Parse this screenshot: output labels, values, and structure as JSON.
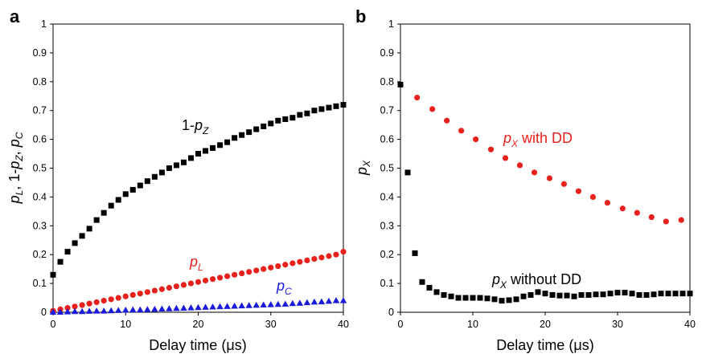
{
  "chart_data": [
    {
      "panel_label": "a",
      "type": "scatter",
      "xlabel": "Delay time (μs)",
      "ylabel": {
        "p1": "p",
        "s1": "L",
        "sep1": ", 1-",
        "p2": "p",
        "s2": "Z",
        "sep2": ", ",
        "p3": "p",
        "s3": "C"
      },
      "xlim": [
        0,
        40
      ],
      "ylim": [
        0,
        1
      ],
      "xticks": [
        "0",
        "10",
        "20",
        "30",
        "40"
      ],
      "yticks": [
        "0",
        "0.1",
        "0.2",
        "0.3",
        "0.4",
        "0.5",
        "0.6",
        "0.7",
        "0.8",
        "0.9",
        "1"
      ],
      "grid": false,
      "annotations": {
        "pz": {
          "pre": "1-",
          "p": "p",
          "sub": "Z"
        },
        "pl": {
          "p": "p",
          "sub": "L"
        },
        "pc": {
          "p": "p",
          "sub": "C"
        }
      },
      "series": [
        {
          "key": "pz",
          "marker": "square",
          "color": "#000000",
          "x": [
            0,
            1,
            2,
            3,
            4,
            5,
            6,
            7,
            8,
            9,
            10,
            11,
            12,
            13,
            14,
            15,
            16,
            17,
            18,
            19,
            20,
            21,
            22,
            23,
            24,
            25,
            26,
            27,
            28,
            29,
            30,
            31,
            32,
            33,
            34,
            35,
            36,
            37,
            38,
            39,
            40
          ],
          "y": [
            0.13,
            0.175,
            0.21,
            0.24,
            0.265,
            0.29,
            0.32,
            0.345,
            0.37,
            0.39,
            0.41,
            0.425,
            0.44,
            0.455,
            0.47,
            0.485,
            0.5,
            0.51,
            0.52,
            0.535,
            0.55,
            0.56,
            0.57,
            0.58,
            0.59,
            0.605,
            0.615,
            0.625,
            0.635,
            0.645,
            0.655,
            0.665,
            0.67,
            0.675,
            0.685,
            0.69,
            0.7,
            0.705,
            0.71,
            0.715,
            0.72
          ]
        },
        {
          "key": "pl",
          "marker": "circle",
          "color": "#e8211d",
          "x": [
            0,
            1,
            2,
            3,
            4,
            5,
            6,
            7,
            8,
            9,
            10,
            11,
            12,
            13,
            14,
            15,
            16,
            17,
            18,
            19,
            20,
            21,
            22,
            23,
            24,
            25,
            26,
            27,
            28,
            29,
            30,
            31,
            32,
            33,
            34,
            35,
            36,
            37,
            38,
            39,
            40
          ],
          "y": [
            0.005,
            0.01,
            0.015,
            0.02,
            0.025,
            0.03,
            0.035,
            0.04,
            0.045,
            0.05,
            0.055,
            0.06,
            0.065,
            0.07,
            0.075,
            0.08,
            0.085,
            0.09,
            0.095,
            0.1,
            0.105,
            0.11,
            0.115,
            0.12,
            0.125,
            0.13,
            0.135,
            0.14,
            0.145,
            0.15,
            0.155,
            0.16,
            0.165,
            0.17,
            0.175,
            0.18,
            0.185,
            0.19,
            0.195,
            0.2,
            0.21
          ]
        },
        {
          "key": "pc",
          "marker": "triangle",
          "color": "#1a1adb",
          "x": [
            0,
            1,
            2,
            3,
            4,
            5,
            6,
            7,
            8,
            9,
            10,
            11,
            12,
            13,
            14,
            15,
            16,
            17,
            18,
            19,
            20,
            21,
            22,
            23,
            24,
            25,
            26,
            27,
            28,
            29,
            30,
            31,
            32,
            33,
            34,
            35,
            36,
            37,
            38,
            39,
            40
          ],
          "y": [
            0,
            0,
            0.001,
            0.002,
            0.002,
            0.003,
            0.004,
            0.004,
            0.005,
            0.006,
            0.007,
            0.008,
            0.008,
            0.009,
            0.01,
            0.011,
            0.012,
            0.013,
            0.014,
            0.015,
            0.016,
            0.017,
            0.018,
            0.019,
            0.02,
            0.021,
            0.022,
            0.023,
            0.024,
            0.025,
            0.026,
            0.027,
            0.028,
            0.03,
            0.031,
            0.033,
            0.035,
            0.036,
            0.038,
            0.04,
            0.04
          ]
        }
      ]
    },
    {
      "panel_label": "b",
      "type": "scatter",
      "xlabel": "Delay time (μs)",
      "ylabel": {
        "p1": "p",
        "s1": "X"
      },
      "xlim": [
        0,
        40
      ],
      "ylim": [
        0,
        1
      ],
      "xticks": [
        "0",
        "10",
        "20",
        "30",
        "40"
      ],
      "yticks": [
        "0",
        "0.1",
        "0.2",
        "0.3",
        "0.4",
        "0.5",
        "0.6",
        "0.7",
        "0.8",
        "0.9",
        "1"
      ],
      "grid": false,
      "annotations": {
        "dd": {
          "p": "p",
          "sub": "X",
          "post": " with DD"
        },
        "nodd": {
          "p": "p",
          "sub": "X",
          "post": " without DD"
        }
      },
      "series": [
        {
          "key": "dd",
          "marker": "circle",
          "color": "#e8211d",
          "x": [
            0,
            2.3,
            4.4,
            6.4,
            8.4,
            10.4,
            12.5,
            14.5,
            16.5,
            18.5,
            20.6,
            22.6,
            24.6,
            26.6,
            28.6,
            30.7,
            32.7,
            34.7,
            36.7,
            38.8
          ],
          "y": [
            0.79,
            0.745,
            0.705,
            0.665,
            0.63,
            0.6,
            0.565,
            0.535,
            0.51,
            0.485,
            0.465,
            0.445,
            0.42,
            0.4,
            0.38,
            0.36,
            0.345,
            0.33,
            0.315,
            0.32
          ]
        },
        {
          "key": "nodd",
          "marker": "square",
          "color": "#000000",
          "x": [
            0,
            1,
            2,
            3,
            4,
            5,
            6,
            7,
            8,
            9,
            10,
            11,
            12,
            13,
            14,
            15,
            16,
            17,
            18,
            19,
            20,
            21,
            22,
            23,
            24,
            25,
            26,
            27,
            28,
            29,
            30,
            31,
            32,
            33,
            34,
            35,
            36,
            37,
            38,
            39,
            40
          ],
          "y": [
            0.79,
            0.485,
            0.205,
            0.105,
            0.085,
            0.07,
            0.06,
            0.055,
            0.05,
            0.05,
            0.05,
            0.05,
            0.048,
            0.045,
            0.04,
            0.042,
            0.045,
            0.055,
            0.06,
            0.07,
            0.065,
            0.06,
            0.058,
            0.058,
            0.055,
            0.06,
            0.06,
            0.062,
            0.062,
            0.065,
            0.068,
            0.068,
            0.065,
            0.06,
            0.06,
            0.062,
            0.065,
            0.065,
            0.065,
            0.065,
            0.065
          ]
        }
      ]
    }
  ]
}
